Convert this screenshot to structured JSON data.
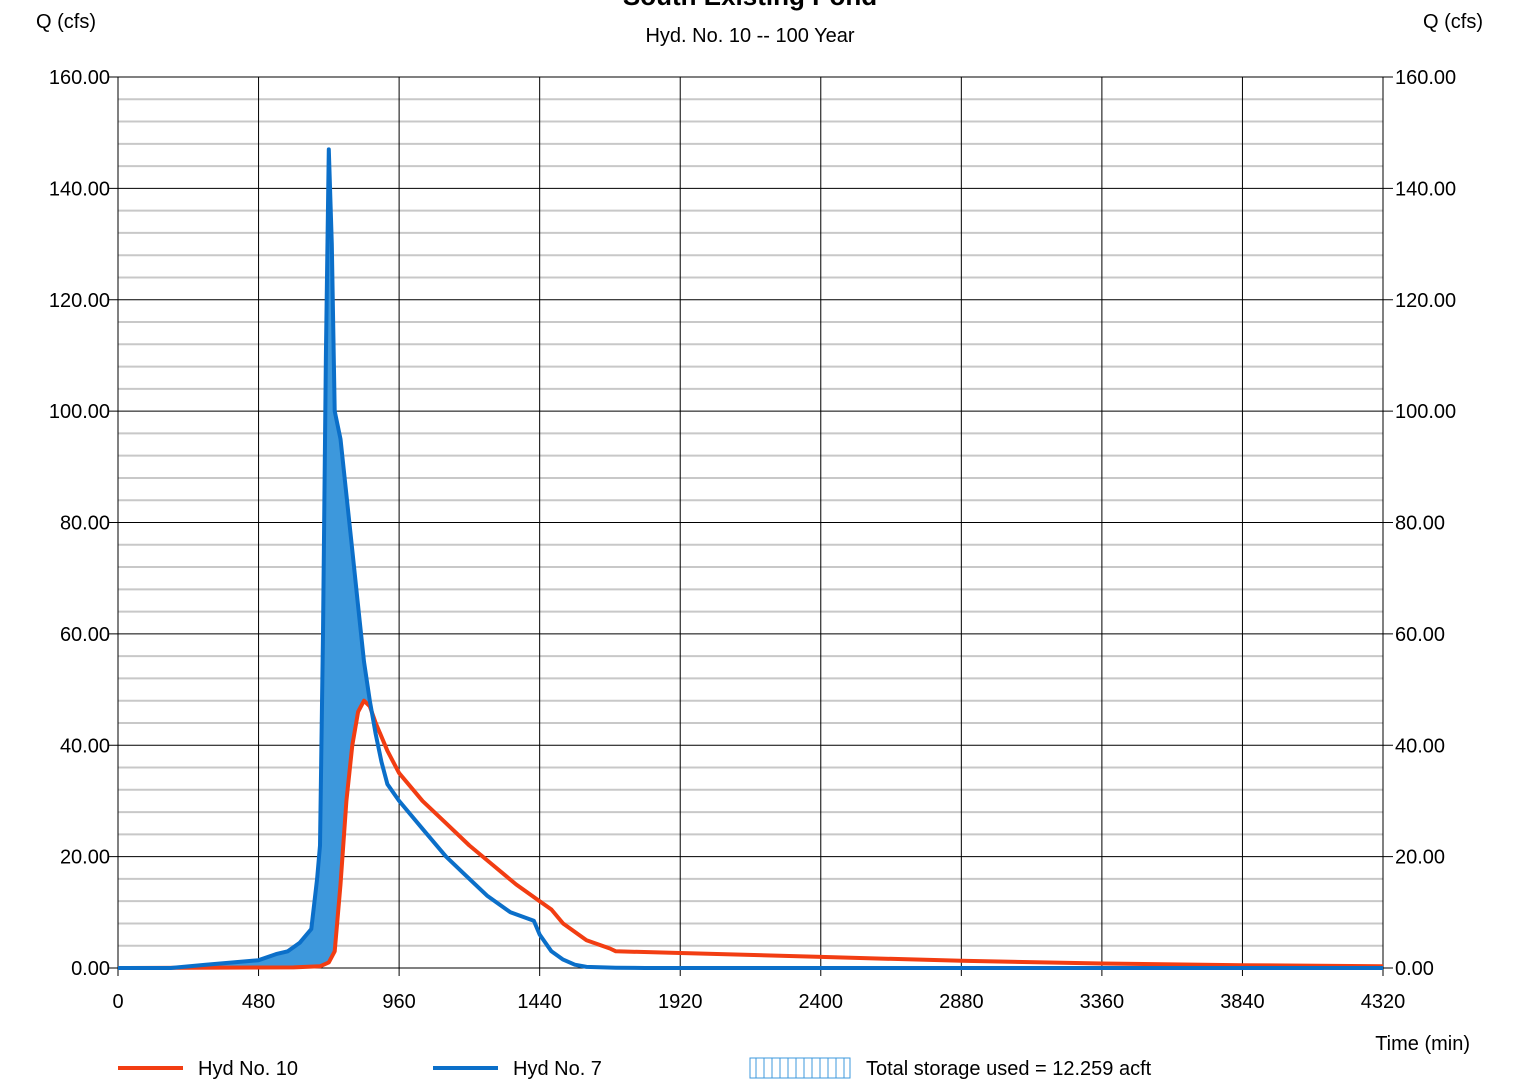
{
  "chart_data": {
    "type": "line",
    "title": "South Existing Pond",
    "subtitle": "Hyd. No. 10 -- 100 Year",
    "y_label": "Q (cfs)",
    "y2_label": "Q (cfs)",
    "x_label": "Time (min)",
    "xlim": [
      0,
      4320
    ],
    "xticks": [
      0,
      480,
      960,
      1440,
      1920,
      2400,
      2880,
      3360,
      3840,
      4320
    ],
    "ylim": [
      0,
      160
    ],
    "yticks": [
      {
        "value": 0,
        "label": "0.00"
      },
      {
        "value": 20,
        "label": "20.00"
      },
      {
        "value": 40,
        "label": "40.00"
      },
      {
        "value": 60,
        "label": "60.00"
      },
      {
        "value": 80,
        "label": "80.00"
      },
      {
        "value": 100,
        "label": "100.00"
      },
      {
        "value": 120,
        "label": "120.00"
      },
      {
        "value": 140,
        "label": "140.00"
      },
      {
        "value": 160,
        "label": "160.00"
      }
    ],
    "y2lim": [
      0,
      160
    ],
    "y2ticks": [
      {
        "value": 0,
        "label": "0.00"
      },
      {
        "value": 20,
        "label": "20.00"
      },
      {
        "value": 40,
        "label": "40.00"
      },
      {
        "value": 60,
        "label": "60.00"
      },
      {
        "value": 80,
        "label": "80.00"
      },
      {
        "value": 100,
        "label": "100.00"
      },
      {
        "value": 120,
        "label": "120.00"
      },
      {
        "value": 140,
        "label": "140.00"
      },
      {
        "value": 160,
        "label": "160.00"
      }
    ],
    "y_minor_ticks": [
      4,
      8,
      12,
      16,
      24,
      28,
      32,
      36,
      44,
      48,
      52,
      56,
      64,
      68,
      72,
      76,
      84,
      88,
      92,
      96,
      104,
      108,
      112,
      116,
      124,
      128,
      132,
      136,
      144,
      148,
      152,
      156
    ],
    "grid": true,
    "series": [
      {
        "name": "Hyd No. 10",
        "color": "#f23d12",
        "x": [
          0,
          600,
          690,
          720,
          740,
          760,
          780,
          800,
          820,
          840,
          860,
          880,
          920,
          960,
          1040,
          1120,
          1200,
          1280,
          1360,
          1440,
          1480,
          1520,
          1600,
          1680,
          1700,
          1920,
          2400,
          2880,
          3360,
          3840,
          4320
        ],
        "values": [
          0,
          0.1,
          0.3,
          1,
          3,
          15,
          30,
          40,
          46,
          48,
          47,
          44,
          39,
          35,
          30,
          26,
          22,
          18.5,
          15,
          12,
          10.5,
          8,
          5,
          3.5,
          3,
          2.7,
          2,
          1.3,
          0.8,
          0.5,
          0.3
        ]
      },
      {
        "name": "Hyd No. 7",
        "color": "#0b6fc9",
        "x": [
          0,
          180,
          300,
          480,
          540,
          580,
          620,
          660,
          680,
          690,
          700,
          710,
          720,
          730,
          740,
          760,
          780,
          800,
          820,
          840,
          860,
          880,
          900,
          920,
          960,
          1040,
          1120,
          1180,
          1260,
          1340,
          1420,
          1440,
          1480,
          1520,
          1560,
          1600,
          1700,
          1800,
          4320
        ],
        "values": [
          0,
          0,
          0.6,
          1.4,
          2.5,
          3,
          4.5,
          7,
          16,
          22,
          60,
          110,
          147,
          130,
          100,
          95,
          85,
          75,
          65,
          55,
          48,
          42,
          37,
          33,
          30,
          25,
          20,
          17,
          13,
          10,
          8.5,
          6,
          3,
          1.5,
          0.6,
          0.2,
          0.05,
          0,
          0
        ]
      }
    ],
    "storage_label": "Total storage used = 12.259 acft",
    "storage_color": "#3d98dc"
  }
}
